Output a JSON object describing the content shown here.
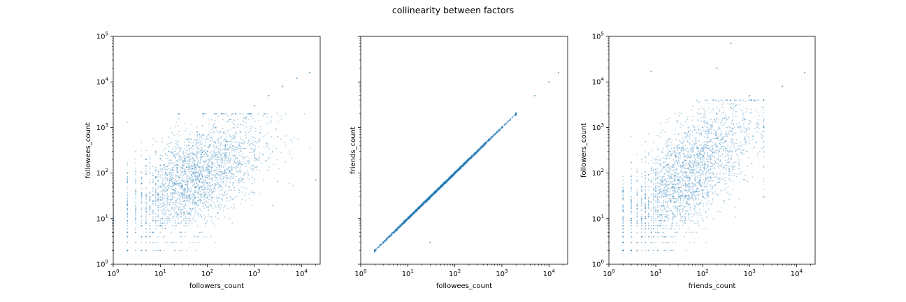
{
  "chart_data": {
    "type": "scatter",
    "title": "collinearity between factors",
    "y_scale": "log",
    "x_scale": "log",
    "ylim": [
      1,
      100000
    ],
    "grid": false,
    "point_color": "#1f77b4",
    "tick_labels_y": [
      {
        "base": "10",
        "exp": "0"
      },
      {
        "base": "10",
        "exp": "1"
      },
      {
        "base": "10",
        "exp": "2"
      },
      {
        "base": "10",
        "exp": "3"
      },
      {
        "base": "10",
        "exp": "4"
      },
      {
        "base": "10",
        "exp": "5"
      }
    ],
    "panels": [
      {
        "xlabel": "followers_count",
        "ylabel": "followees_count",
        "xlim": [
          1,
          25000
        ],
        "x_tick_labels": [
          {
            "base": "10",
            "exp": "0"
          },
          {
            "base": "10",
            "exp": "1"
          },
          {
            "base": "10",
            "exp": "2"
          },
          {
            "base": "10",
            "exp": "3"
          },
          {
            "base": "10",
            "exp": "4"
          }
        ],
        "points": [
          [
            1,
            1
          ],
          [
            1,
            2
          ],
          [
            1,
            3
          ],
          [
            1,
            5
          ],
          [
            1,
            10
          ],
          [
            1,
            20
          ],
          [
            1,
            50
          ],
          [
            2,
            2
          ],
          [
            2,
            5
          ],
          [
            2,
            20
          ],
          [
            2,
            100
          ],
          [
            3,
            10
          ],
          [
            3,
            40
          ],
          [
            4,
            60
          ],
          [
            5,
            8
          ],
          [
            5,
            200
          ],
          [
            6,
            30
          ],
          [
            8,
            80
          ],
          [
            10,
            50
          ],
          [
            12,
            150
          ],
          [
            15,
            300
          ],
          [
            20,
            60
          ],
          [
            25,
            2000
          ],
          [
            30,
            150
          ],
          [
            40,
            400
          ],
          [
            50,
            100
          ],
          [
            60,
            800
          ],
          [
            80,
            2000
          ],
          [
            100,
            300
          ],
          [
            120,
            600
          ],
          [
            150,
            1000
          ],
          [
            200,
            2000
          ],
          [
            250,
            500
          ],
          [
            300,
            1500
          ],
          [
            400,
            2000
          ],
          [
            500,
            800
          ],
          [
            800,
            2000
          ],
          [
            1000,
            3000
          ],
          [
            2000,
            5000
          ],
          [
            4000,
            8000
          ],
          [
            8000,
            12000
          ],
          [
            15000,
            16000
          ],
          [
            20000,
            70
          ]
        ]
      },
      {
        "xlabel": "followees_count",
        "ylabel": "friends_count",
        "xlim": [
          1,
          25000
        ],
        "x_tick_labels": [
          {
            "base": "10",
            "exp": "0"
          },
          {
            "base": "10",
            "exp": "1"
          },
          {
            "base": "10",
            "exp": "2"
          },
          {
            "base": "10",
            "exp": "3"
          },
          {
            "base": "10",
            "exp": "4"
          }
        ],
        "points": [
          [
            2,
            2
          ],
          [
            3,
            3
          ],
          [
            4,
            4
          ],
          [
            5,
            5
          ],
          [
            7,
            7
          ],
          [
            10,
            10
          ],
          [
            20,
            20
          ],
          [
            50,
            50
          ],
          [
            100,
            100
          ],
          [
            200,
            200
          ],
          [
            500,
            500
          ],
          [
            1000,
            1000
          ],
          [
            2000,
            2000
          ],
          [
            5000,
            5000
          ],
          [
            10000,
            10000
          ],
          [
            16000,
            16000
          ],
          [
            30,
            3
          ]
        ]
      },
      {
        "xlabel": "friends_count",
        "ylabel": "followers_count",
        "xlim": [
          1,
          25000
        ],
        "x_tick_labels": [
          {
            "base": "10",
            "exp": "0"
          },
          {
            "base": "10",
            "exp": "1"
          },
          {
            "base": "10",
            "exp": "2"
          },
          {
            "base": "10",
            "exp": "3"
          },
          {
            "base": "10",
            "exp": "4"
          }
        ],
        "points": [
          [
            1,
            1
          ],
          [
            1,
            2
          ],
          [
            1,
            5
          ],
          [
            1,
            20
          ],
          [
            2,
            2
          ],
          [
            2,
            3
          ],
          [
            3,
            10
          ],
          [
            5,
            50
          ],
          [
            10,
            100
          ],
          [
            20,
            300
          ],
          [
            50,
            800
          ],
          [
            100,
            1000
          ],
          [
            200,
            2000
          ],
          [
            300,
            500
          ],
          [
            500,
            3000
          ],
          [
            1000,
            5000
          ],
          [
            2000,
            30
          ],
          [
            2000,
            1000
          ],
          [
            5000,
            8000
          ],
          [
            15000,
            16000
          ],
          [
            400,
            70000
          ],
          [
            8,
            17000
          ],
          [
            200,
            20000
          ]
        ]
      }
    ]
  }
}
